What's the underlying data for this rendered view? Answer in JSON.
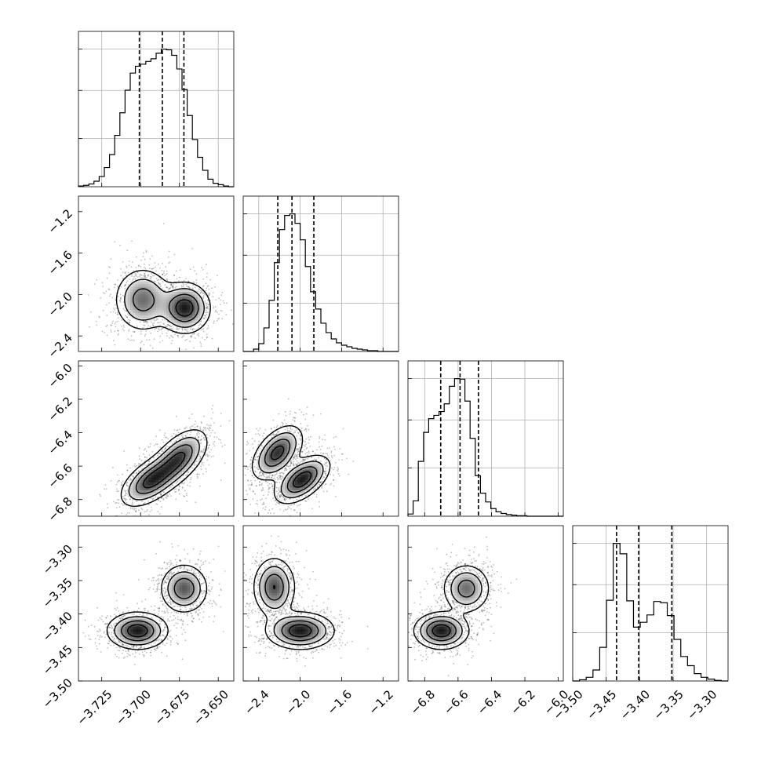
{
  "chart_data": {
    "type": "corner",
    "parameters": [
      {
        "range": [
          -3.74,
          -3.64
        ],
        "ticks": [
          -3.725,
          -3.7,
          -3.675,
          -3.65
        ],
        "tick_labels": [
          "−3.725",
          "−3.700",
          "−3.675",
          "−3.650"
        ],
        "quantiles": [
          -3.7008,
          -3.686,
          -3.6721
        ]
      },
      {
        "range": [
          -2.55,
          -1.05
        ],
        "ticks": [
          -2.4,
          -2.0,
          -1.6,
          -1.2
        ],
        "tick_labels": [
          "−2.4",
          "−2.0",
          "−1.6",
          "−1.2"
        ],
        "quantiles": [
          -2.216,
          -2.079,
          -1.868
        ]
      },
      {
        "range": [
          -6.9,
          -5.97
        ],
        "ticks": [
          -6.8,
          -6.6,
          -6.4,
          -6.2,
          -6.0
        ],
        "tick_labels": [
          "−6.8",
          "−6.6",
          "−6.4",
          "−6.2",
          "−6.0"
        ],
        "quantiles": [
          -6.704,
          -6.588,
          -6.478
        ]
      },
      {
        "range": [
          -3.5,
          -3.268
        ],
        "ticks": [
          -3.5,
          -3.45,
          -3.4,
          -3.35,
          -3.3
        ],
        "tick_labels": [
          "−3.50",
          "−3.45",
          "−3.40",
          "−3.35",
          "−3.30"
        ],
        "quantiles": [
          -3.4345,
          -3.4015,
          -3.352
        ]
      }
    ],
    "histograms": [
      {
        "param": 0,
        "bin_edges_range": [
          -3.74,
          -3.64
        ],
        "counts": [
          1,
          2,
          4,
          8,
          15,
          28,
          47,
          75,
          108,
          141,
          166,
          176,
          179,
          183,
          187,
          195,
          201,
          200,
          192,
          172,
          142,
          104,
          69,
          43,
          24,
          11,
          5,
          3,
          1,
          0
        ]
      },
      {
        "param": 1,
        "bin_edges_range": [
          -2.55,
          -1.05
        ],
        "counts": [
          0,
          0,
          3,
          10,
          30,
          65,
          113,
          155,
          173,
          175,
          163,
          142,
          108,
          76,
          54,
          36,
          24,
          16,
          11,
          8,
          6,
          4,
          3,
          2,
          1,
          1,
          0,
          0,
          0,
          0
        ]
      },
      {
        "param": 2,
        "bin_edges_range": [
          -6.9,
          -5.97
        ],
        "counts": [
          4,
          28,
          100,
          153,
          178,
          184,
          191,
          205,
          237,
          251,
          250,
          210,
          142,
          74,
          42,
          26,
          14,
          8,
          5,
          3,
          2,
          1,
          1,
          0,
          0,
          0,
          0,
          0,
          0,
          0
        ]
      },
      {
        "param": 3,
        "bin_edges_range": [
          -3.5,
          -3.268
        ],
        "counts": [
          0,
          2,
          6,
          18,
          55,
          132,
          225,
          208,
          131,
          88,
          96,
          108,
          130,
          128,
          107,
          68,
          40,
          25,
          12,
          6,
          3,
          1,
          0
        ]
      }
    ],
    "scatter_panels": [
      {
        "x_param": 0,
        "y_param": 1,
        "modes": [
          {
            "x": -3.6985,
            "y": -2.05,
            "sx": 0.009,
            "sy": 0.15,
            "rho": 0.0,
            "w": 0.5
          },
          {
            "x": -3.6715,
            "y": -2.13,
            "sx": 0.008,
            "sy": 0.12,
            "rho": 0.0,
            "w": 0.5
          }
        ]
      },
      {
        "x_param": 0,
        "y_param": 2,
        "modes": [
          {
            "x": -3.6935,
            "y": -6.69,
            "sx": 0.0095,
            "sy": 0.075,
            "rho": 0.55,
            "w": 0.5
          },
          {
            "x": -3.675,
            "y": -6.55,
            "sx": 0.009,
            "sy": 0.085,
            "rho": 0.55,
            "w": 0.5
          }
        ]
      },
      {
        "x_param": 1,
        "y_param": 2,
        "modes": [
          {
            "x": -2.22,
            "y": -6.52,
            "sx": 0.12,
            "sy": 0.08,
            "rho": 0.5,
            "w": 0.5
          },
          {
            "x": -1.98,
            "y": -6.68,
            "sx": 0.13,
            "sy": 0.07,
            "rho": 0.55,
            "w": 0.5
          }
        ]
      },
      {
        "x_param": 0,
        "y_param": 3,
        "modes": [
          {
            "x": -3.702,
            "y": -3.425,
            "sx": 0.0095,
            "sy": 0.0135,
            "rho": 0.0,
            "w": 0.55
          },
          {
            "x": -3.672,
            "y": -3.362,
            "sx": 0.0075,
            "sy": 0.018,
            "rho": 0.0,
            "w": 0.45
          }
        ]
      },
      {
        "x_param": 1,
        "y_param": 3,
        "modes": [
          {
            "x": -2.25,
            "y": -3.36,
            "sx": 0.1,
            "sy": 0.022,
            "rho": 0.0,
            "w": 0.45
          },
          {
            "x": -2.0,
            "y": -3.425,
            "sx": 0.16,
            "sy": 0.0135,
            "rho": 0.0,
            "w": 0.55
          }
        ]
      },
      {
        "x_param": 2,
        "y_param": 3,
        "modes": [
          {
            "x": -6.7,
            "y": -3.425,
            "sx": 0.08,
            "sy": 0.0135,
            "rho": 0.0,
            "w": 0.55
          },
          {
            "x": -6.55,
            "y": -3.362,
            "sx": 0.07,
            "sy": 0.018,
            "rho": 0.0,
            "w": 0.45
          }
        ]
      }
    ],
    "grid": true,
    "colors": {
      "points": "#1a1a1a",
      "lines": "#000000",
      "grid": "#b0b0b0"
    }
  }
}
